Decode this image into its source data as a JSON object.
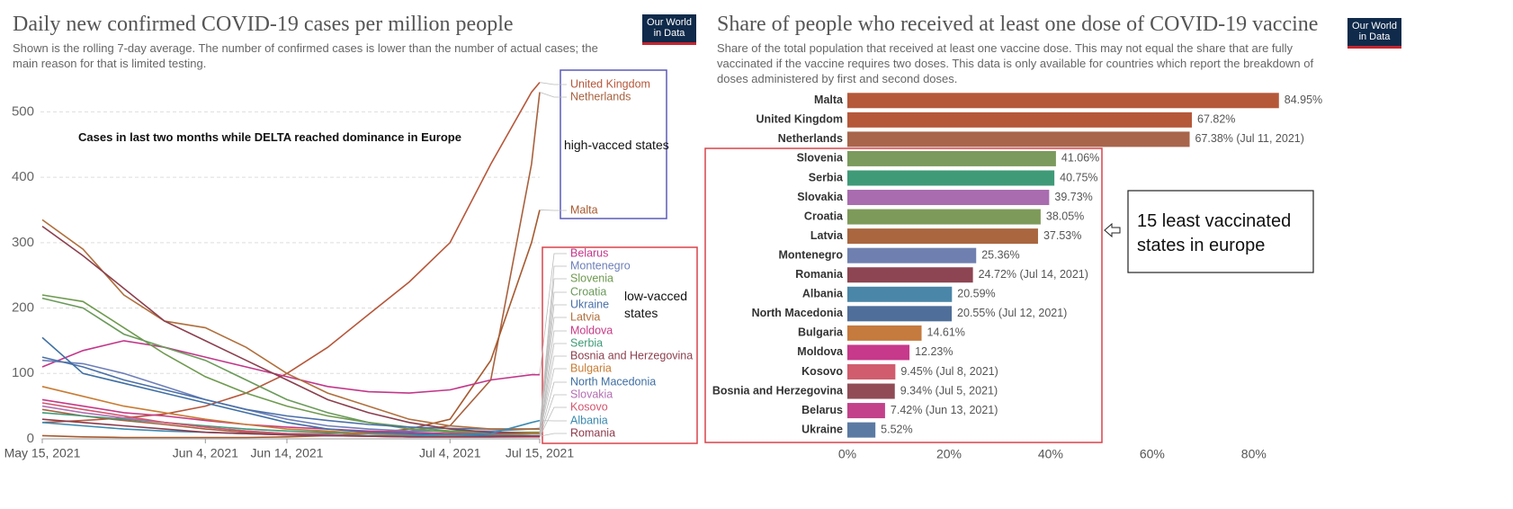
{
  "chart_data": [
    {
      "type": "line",
      "title": "Daily new confirmed COVID-19 cases per million people",
      "subtitle": "Shown is the rolling 7-day average. The number of confirmed cases is lower than the number of actual cases; the main reason for that is limited testing.",
      "logo": "Our World in Data",
      "annotations": [
        "Cases in last two months while DELTA reached dominance in Europe",
        "high-vacced states",
        "low-vacced states"
      ],
      "x": [
        "2021-05-15",
        "2021-05-20",
        "2021-05-25",
        "2021-05-30",
        "2021-06-04",
        "2021-06-09",
        "2021-06-14",
        "2021-06-19",
        "2021-06-24",
        "2021-06-29",
        "2021-07-04",
        "2021-07-09",
        "2021-07-14",
        "2021-07-15"
      ],
      "xlim": [
        "2021-05-15",
        "2021-07-15"
      ],
      "xticks": [
        {
          "value": "2021-05-15",
          "label": "May 15, 2021"
        },
        {
          "value": "2021-06-04",
          "label": "Jun 4, 2021"
        },
        {
          "value": "2021-06-14",
          "label": "Jun 14, 2021"
        },
        {
          "value": "2021-07-04",
          "label": "Jul 4, 2021"
        },
        {
          "value": "2021-07-15",
          "label": "Jul 15, 2021"
        }
      ],
      "ylim": [
        0,
        550
      ],
      "yticks": [
        0,
        100,
        200,
        300,
        400,
        500
      ],
      "grid": true,
      "series": [
        {
          "name": "United Kingdom",
          "color": "#b6573a",
          "values": [
            25,
            28,
            32,
            38,
            50,
            70,
            100,
            140,
            190,
            240,
            300,
            420,
            530,
            545
          ]
        },
        {
          "name": "Netherlands",
          "color": "#a8613e",
          "values": [
            45,
            35,
            28,
            22,
            15,
            10,
            8,
            8,
            10,
            12,
            20,
            90,
            420,
            530
          ]
        },
        {
          "name": "Malta",
          "color": "#a65a2f",
          "values": [
            5,
            3,
            2,
            2,
            2,
            2,
            3,
            5,
            8,
            15,
            30,
            120,
            300,
            350
          ]
        },
        {
          "name": "Belarus",
          "color": "#c2378a",
          "values": [
            110,
            135,
            150,
            140,
            125,
            110,
            95,
            80,
            72,
            70,
            75,
            90,
            98,
            98
          ]
        },
        {
          "name": "Montenegro",
          "color": "#6d7fb8",
          "values": [
            120,
            115,
            100,
            80,
            60,
            45,
            30,
            20,
            15,
            12,
            12,
            12,
            15,
            16
          ]
        },
        {
          "name": "Slovenia",
          "color": "#6e9a4f",
          "values": [
            220,
            210,
            170,
            130,
            95,
            70,
            50,
            35,
            25,
            18,
            12,
            10,
            10,
            10
          ]
        },
        {
          "name": "Croatia",
          "color": "#6a9a5a",
          "values": [
            215,
            200,
            160,
            140,
            120,
            90,
            60,
            40,
            25,
            15,
            10,
            8,
            8,
            8
          ]
        },
        {
          "name": "Ukraine",
          "color": "#4a70a8",
          "values": [
            125,
            110,
            90,
            75,
            60,
            45,
            35,
            28,
            22,
            18,
            16,
            15,
            15,
            15
          ]
        },
        {
          "name": "Latvia",
          "color": "#b06f3d",
          "values": [
            335,
            290,
            220,
            180,
            170,
            140,
            100,
            70,
            50,
            30,
            20,
            15,
            15,
            15
          ]
        },
        {
          "name": "Moldova",
          "color": "#c73a85",
          "values": [
            60,
            50,
            40,
            35,
            28,
            22,
            18,
            15,
            12,
            10,
            8,
            8,
            8,
            8
          ]
        },
        {
          "name": "Serbia",
          "color": "#3f9a78",
          "values": [
            40,
            35,
            30,
            25,
            20,
            15,
            12,
            10,
            8,
            6,
            5,
            6,
            8,
            8
          ]
        },
        {
          "name": "Bosnia and Herzegovina",
          "color": "#8b3f4e",
          "values": [
            325,
            280,
            230,
            180,
            150,
            120,
            90,
            60,
            40,
            25,
            15,
            10,
            8,
            8
          ]
        },
        {
          "name": "Bulgaria",
          "color": "#c87c34",
          "values": [
            80,
            65,
            50,
            40,
            30,
            22,
            15,
            12,
            8,
            6,
            5,
            6,
            8,
            8
          ]
        },
        {
          "name": "North Macedonia",
          "color": "#3f6fa3",
          "values": [
            155,
            100,
            85,
            70,
            55,
            40,
            25,
            15,
            10,
            8,
            6,
            5,
            5,
            5
          ]
        },
        {
          "name": "Slovakia",
          "color": "#b46fb3",
          "values": [
            50,
            40,
            32,
            25,
            18,
            12,
            8,
            6,
            4,
            3,
            3,
            3,
            3,
            3
          ]
        },
        {
          "name": "Kosovo",
          "color": "#d2566f",
          "values": [
            55,
            45,
            35,
            25,
            18,
            12,
            8,
            5,
            4,
            3,
            3,
            3,
            3,
            3
          ]
        },
        {
          "name": "Albania",
          "color": "#3b8ab0",
          "values": [
            25,
            20,
            15,
            12,
            10,
            8,
            6,
            5,
            5,
            5,
            6,
            8,
            25,
            28
          ]
        },
        {
          "name": "Romania",
          "color": "#8c3b4c",
          "values": [
            30,
            25,
            20,
            15,
            10,
            8,
            6,
            5,
            4,
            3,
            3,
            3,
            4,
            4
          ]
        }
      ]
    },
    {
      "type": "bar",
      "orientation": "horizontal",
      "title": "Share of people who received at least one dose of COVID-19 vaccine",
      "subtitle": "Share of the total population that received at least one vaccine dose. This may not equal the share that are fully vaccinated if the vaccine requires two doses. This data is only available for countries which report the breakdown of doses administered by first and second doses.",
      "logo": "Our World in Data",
      "annotations": [
        "15 least vaccinated states in europe"
      ],
      "categories": [
        "Malta",
        "United Kingdom",
        "Netherlands",
        "Slovenia",
        "Serbia",
        "Slovakia",
        "Croatia",
        "Latvia",
        "Montenegro",
        "Romania",
        "Albania",
        "North Macedonia",
        "Bulgaria",
        "Moldova",
        "Kosovo",
        "Bosnia and Herzegovina",
        "Belarus",
        "Ukraine"
      ],
      "values": [
        84.95,
        67.82,
        67.38,
        41.06,
        40.75,
        39.73,
        38.05,
        37.53,
        25.36,
        24.72,
        20.59,
        20.55,
        14.61,
        12.23,
        9.45,
        9.34,
        7.42,
        5.52
      ],
      "value_labels": [
        "84.95%",
        "67.82%",
        "67.38% (Jul 11, 2021)",
        "41.06%",
        "40.75%",
        "39.73%",
        "38.05%",
        "37.53%",
        "25.36%",
        "24.72% (Jul 14, 2021)",
        "20.59%",
        "20.55% (Jul 12, 2021)",
        "14.61%",
        "12.23%",
        "9.45% (Jul 8, 2021)",
        "9.34% (Jul 5, 2021)",
        "7.42% (Jun 13, 2021)",
        "5.52%"
      ],
      "colors": [
        "#b5583a",
        "#b5583a",
        "#a8654b",
        "#7b9a5d",
        "#3f9a78",
        "#a96caf",
        "#7e9a5a",
        "#a9663f",
        "#6f80b0",
        "#8e4553",
        "#4a86a8",
        "#4f6f9a",
        "#c57a3e",
        "#c7398a",
        "#d05c6e",
        "#904b57",
        "#c2418a",
        "#5b7aa3"
      ],
      "xlim": [
        0,
        88
      ],
      "xticks": [
        {
          "value": 0,
          "label": "0%"
        },
        {
          "value": 20,
          "label": "20%"
        },
        {
          "value": 40,
          "label": "40%"
        },
        {
          "value": 60,
          "label": "60%"
        },
        {
          "value": 80,
          "label": "80%"
        }
      ],
      "grid": false
    }
  ]
}
